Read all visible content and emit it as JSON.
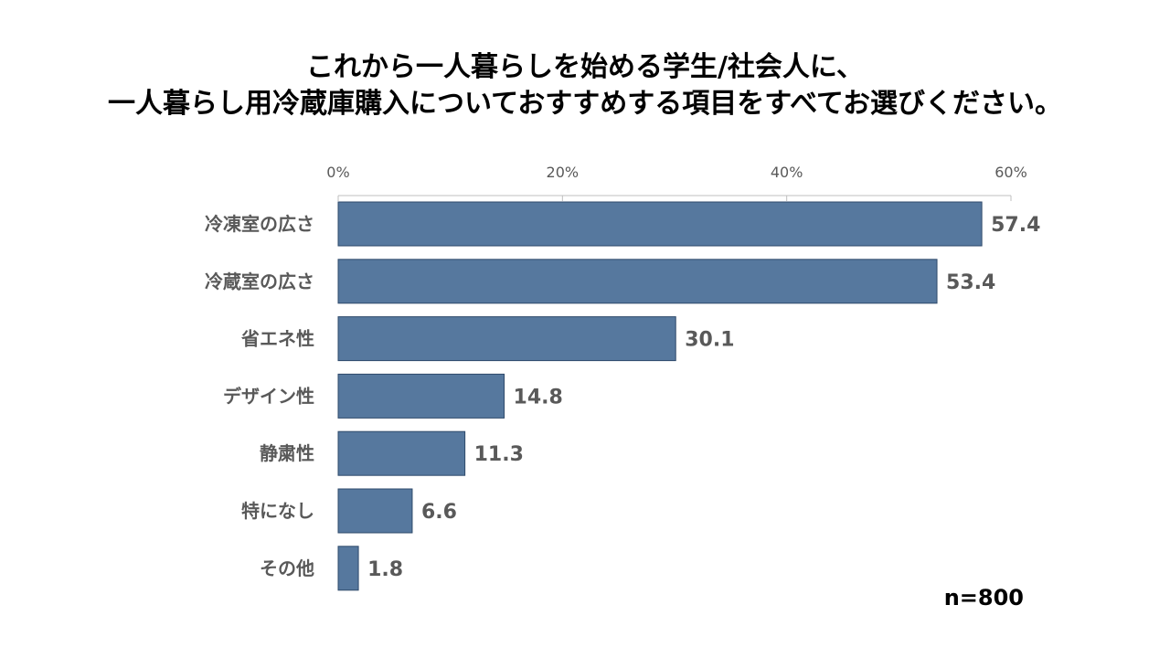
{
  "chart_data": {
    "type": "bar",
    "orientation": "horizontal",
    "title_lines": [
      "これから一人暮らしを始める学生/社会人に、",
      "一人暮らし用冷蔵庫購入についておすすめする項目をすべてお選びください。"
    ],
    "categories": [
      "冷凍室の広さ",
      "冷蔵室の広さ",
      "省エネ性",
      "デザイン性",
      "静粛性",
      "特になし",
      "その他"
    ],
    "values": [
      57.4,
      53.4,
      30.1,
      14.8,
      11.3,
      6.6,
      1.8
    ],
    "value_labels": [
      "57.4",
      "53.4",
      "30.1",
      "14.8",
      "11.3",
      "6.6",
      "1.8"
    ],
    "xlim": [
      0,
      60
    ],
    "x_ticks": [
      0,
      20,
      40,
      60
    ],
    "x_tick_labels": [
      "0%",
      "20%",
      "40%",
      "60%"
    ],
    "axis_position": "top",
    "grid": false,
    "bar_color": "#56789E",
    "bar_border_color": "#2F4A6B",
    "note": "n=800"
  }
}
